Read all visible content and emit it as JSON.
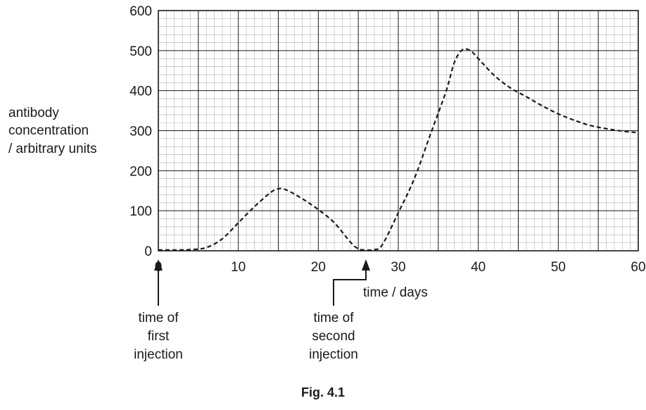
{
  "chart_data": {
    "type": "line",
    "xlabel": "time / days",
    "ylabel": [
      "antibody",
      "concentration",
      "/ arbitrary units"
    ],
    "xlim": [
      0,
      60
    ],
    "ylim": [
      0,
      600
    ],
    "x_ticks": [
      0,
      10,
      20,
      30,
      40,
      50,
      60
    ],
    "y_ticks": [
      0,
      100,
      200,
      300,
      400,
      500,
      600
    ],
    "grid": true,
    "line_style": "dashed",
    "x": [
      0,
      2,
      4,
      6,
      8,
      10,
      12,
      14,
      15,
      16,
      18,
      20,
      22,
      24,
      25,
      26,
      27,
      28,
      30,
      32,
      34,
      36,
      37,
      38,
      39,
      40,
      42,
      44,
      46,
      48,
      50,
      52,
      54,
      56,
      58,
      60
    ],
    "y": [
      2,
      2,
      3,
      8,
      30,
      70,
      110,
      145,
      155,
      152,
      130,
      103,
      70,
      22,
      5,
      2,
      3,
      15,
      95,
      180,
      290,
      400,
      470,
      502,
      500,
      480,
      438,
      407,
      385,
      362,
      342,
      326,
      313,
      305,
      299,
      295
    ],
    "annotations": [
      {
        "x": 0,
        "lines": [
          "time of",
          "first",
          "injection"
        ]
      },
      {
        "x": 26,
        "lines": [
          "time of",
          "second",
          "injection"
        ]
      }
    ],
    "caption": "Fig. 4.1"
  },
  "colors": {
    "ink": "#1a1a1a",
    "grid": "#b0b0b0",
    "background": "#ffffff"
  }
}
